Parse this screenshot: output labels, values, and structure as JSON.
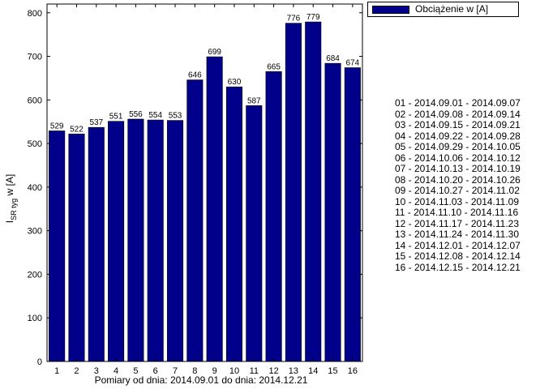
{
  "chart_data": {
    "type": "bar",
    "categories": [
      "1",
      "2",
      "3",
      "4",
      "5",
      "6",
      "7",
      "8",
      "9",
      "10",
      "11",
      "12",
      "13",
      "14",
      "15",
      "16"
    ],
    "series": [
      {
        "name": "Obciążenie w [A]",
        "values": [
          529,
          522,
          537,
          551,
          556,
          554,
          553,
          646,
          699,
          630,
          587,
          665,
          776,
          779,
          684,
          674
        ]
      }
    ],
    "data_labels": [
      "529",
      "522",
      "537",
      "551",
      "556",
      "554",
      "553",
      "646",
      "699",
      "630",
      "587",
      "665",
      "776",
      "779",
      "684",
      "674"
    ],
    "xlabel": "Pomiary od dnia: 2014.09.01 do dnia: 2014.12.21",
    "ylabel": {
      "main": "I",
      "subscript": "SR tyg",
      "suffix": " w [A]"
    },
    "ylim": [
      0,
      820
    ],
    "yticks": [
      0,
      100,
      200,
      300,
      400,
      500,
      600,
      700,
      800
    ],
    "xlim": [
      0.5,
      16.5
    ],
    "grid": false,
    "legend_position": "top-right",
    "bar_color": "#00008B"
  },
  "legend": {
    "label": "Obciążenie w [A]"
  },
  "periods": [
    "01 - 2014.09.01 - 2014.09.07",
    "02 - 2014.09.08 - 2014.09.14",
    "03 - 2014.09.15 - 2014.09.21",
    "04 - 2014.09.22 - 2014.09.28",
    "05 - 2014.09.29 - 2014.10.05",
    "06 - 2014.10.06 - 2014.10.12",
    "07 - 2014.10.13 - 2014.10.19",
    "08 - 2014.10.20 - 2014.10.26",
    "09 - 2014.10.27 - 2014.11.02",
    "10 - 2014.11.03 - 2014.11.09",
    "11 - 2014.11.10 - 2014.11.16",
    "12 - 2014.11.17 - 2014.11.23",
    "13 - 2014.11.24 - 2014.11.30",
    "14 - 2014.12.01 - 2014.12.07",
    "15 - 2014.12.08 - 2014.12.14",
    "16 - 2014.12.15 - 2014.12.21"
  ]
}
